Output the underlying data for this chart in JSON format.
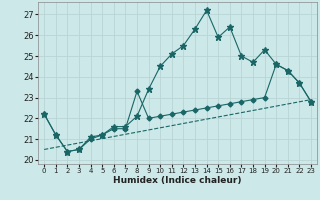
{
  "xlabel": "Humidex (Indice chaleur)",
  "xlim": [
    -0.5,
    23.5
  ],
  "ylim": [
    19.8,
    27.6
  ],
  "yticks": [
    20,
    21,
    22,
    23,
    24,
    25,
    26,
    27
  ],
  "xticks": [
    0,
    1,
    2,
    3,
    4,
    5,
    6,
    7,
    8,
    9,
    10,
    11,
    12,
    13,
    14,
    15,
    16,
    17,
    18,
    19,
    20,
    21,
    22,
    23
  ],
  "bg_color": "#cce8e8",
  "grid_color": "#b8d4d4",
  "line_color": "#1a6666",
  "line1_x": [
    0,
    1,
    2,
    3,
    4,
    5,
    6,
    7,
    8,
    9,
    10,
    11,
    12,
    13,
    14,
    15,
    16,
    17,
    18,
    19,
    20,
    21,
    22,
    23
  ],
  "line1_y": [
    22.2,
    21.2,
    20.4,
    20.5,
    21.1,
    21.2,
    21.6,
    21.6,
    22.1,
    23.4,
    24.5,
    25.1,
    25.5,
    26.3,
    27.2,
    25.9,
    26.4,
    25.0,
    24.7,
    25.3,
    24.6,
    24.3,
    23.7,
    22.8
  ],
  "line2_x": [
    0,
    1,
    2,
    3,
    4,
    5,
    6,
    7,
    8,
    9,
    10,
    11,
    12,
    13,
    14,
    15,
    16,
    17,
    18,
    19,
    20,
    21,
    22,
    23
  ],
  "line2_y": [
    22.2,
    21.2,
    20.4,
    20.5,
    21.0,
    21.2,
    21.5,
    21.5,
    23.3,
    22.0,
    22.1,
    22.2,
    22.3,
    22.4,
    22.5,
    22.6,
    22.7,
    22.8,
    22.9,
    23.0,
    24.6,
    24.3,
    23.7,
    22.8
  ],
  "line3_x": [
    0,
    23
  ],
  "line3_y": [
    20.5,
    22.9
  ]
}
